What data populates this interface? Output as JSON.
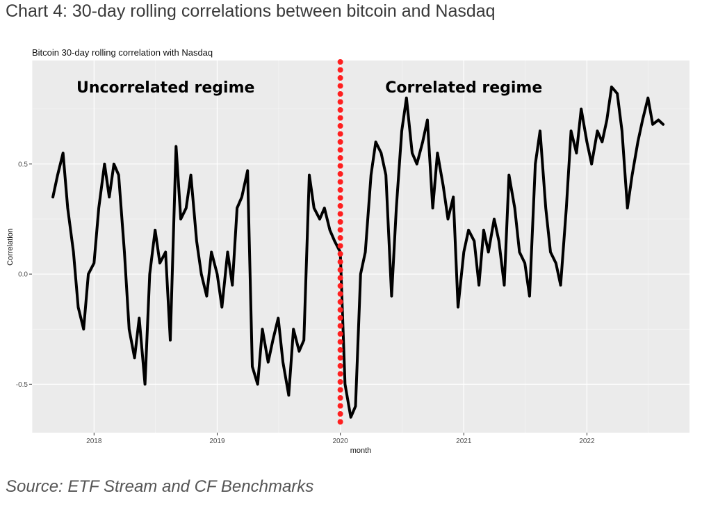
{
  "header": {
    "title": "Chart 4: 30-day rolling correlations between bitcoin and Nasdaq"
  },
  "footer": {
    "source": "Source: ETF Stream and CF Benchmarks"
  },
  "colors": {
    "panel": "#ebebeb",
    "grid_major": "#ffffff",
    "line": "#000000",
    "vline": "#ff1f1f"
  },
  "chart_data": {
    "type": "line",
    "title": "Bitcoin 30-day rolling correlation with Nasdaq",
    "xlabel": "month",
    "ylabel": "Correlation",
    "xlim": [
      "2017-07-01",
      "2022-11-01"
    ],
    "ylim": [
      -0.72,
      0.97
    ],
    "x_ticks": [
      {
        "value": "2018-01-01",
        "label": "2018"
      },
      {
        "value": "2019-01-01",
        "label": "2019"
      },
      {
        "value": "2020-01-01",
        "label": "2020"
      },
      {
        "value": "2021-01-01",
        "label": "2021"
      },
      {
        "value": "2022-01-01",
        "label": "2022"
      }
    ],
    "y_ticks": [
      {
        "value": -0.5,
        "label": "-0.5"
      },
      {
        "value": 0.0,
        "label": "0.0"
      },
      {
        "value": 0.5,
        "label": "0.5"
      }
    ],
    "grid": true,
    "legend": "none",
    "reference_line": {
      "x": "2020-01-01",
      "style": "dotted",
      "color": "#ff1f1f"
    },
    "annotations": [
      {
        "text": "Uncorrelated regime",
        "x": "2018-08-01",
        "y": 0.85
      },
      {
        "text": "Correlated regime",
        "x": "2021-01-01",
        "y": 0.85
      }
    ],
    "series": [
      {
        "x": [
          "2017-09-01",
          "2017-09-15",
          "2017-10-01",
          "2017-10-15",
          "2017-11-01",
          "2017-11-15",
          "2017-12-01",
          "2017-12-15",
          "2018-01-01",
          "2018-01-15",
          "2018-02-01",
          "2018-02-15",
          "2018-03-01",
          "2018-03-15",
          "2018-04-01",
          "2018-04-15",
          "2018-05-01",
          "2018-05-15",
          "2018-06-01",
          "2018-06-15",
          "2018-07-01",
          "2018-07-15",
          "2018-08-01",
          "2018-08-15",
          "2018-09-01",
          "2018-09-15",
          "2018-10-01",
          "2018-10-15",
          "2018-11-01",
          "2018-11-15",
          "2018-12-01",
          "2018-12-15",
          "2019-01-01",
          "2019-01-15",
          "2019-02-01",
          "2019-02-15",
          "2019-03-01",
          "2019-03-15",
          "2019-04-01",
          "2019-04-15",
          "2019-05-01",
          "2019-05-15",
          "2019-06-01",
          "2019-06-15",
          "2019-07-01",
          "2019-07-15",
          "2019-08-01",
          "2019-08-15",
          "2019-09-01",
          "2019-09-15",
          "2019-10-01",
          "2019-10-15",
          "2019-11-01",
          "2019-11-15",
          "2019-12-01",
          "2019-12-15",
          "2020-01-01",
          "2020-01-15",
          "2020-02-01",
          "2020-02-15",
          "2020-03-01",
          "2020-03-15",
          "2020-04-01",
          "2020-04-15",
          "2020-05-01",
          "2020-05-15",
          "2020-06-01",
          "2020-06-15",
          "2020-07-01",
          "2020-07-15",
          "2020-08-01",
          "2020-08-15",
          "2020-09-01",
          "2020-09-15",
          "2020-10-01",
          "2020-10-15",
          "2020-11-01",
          "2020-11-15",
          "2020-12-01",
          "2020-12-15",
          "2021-01-01",
          "2021-01-15",
          "2021-02-01",
          "2021-02-15",
          "2021-03-01",
          "2021-03-15",
          "2021-04-01",
          "2021-04-15",
          "2021-05-01",
          "2021-05-15",
          "2021-06-01",
          "2021-06-15",
          "2021-07-01",
          "2021-07-15",
          "2021-08-01",
          "2021-08-15",
          "2021-09-01",
          "2021-09-15",
          "2021-10-01",
          "2021-10-15",
          "2021-11-01",
          "2021-11-15",
          "2021-12-01",
          "2021-12-15",
          "2022-01-01",
          "2022-01-15",
          "2022-02-01",
          "2022-02-15",
          "2022-03-01",
          "2022-03-15",
          "2022-04-01",
          "2022-04-15",
          "2022-05-01",
          "2022-05-15",
          "2022-06-01",
          "2022-06-15",
          "2022-07-01",
          "2022-07-15",
          "2022-08-01",
          "2022-08-15"
        ],
        "y": [
          0.35,
          0.45,
          0.55,
          0.3,
          0.1,
          -0.15,
          -0.25,
          0.0,
          0.05,
          0.3,
          0.5,
          0.35,
          0.5,
          0.45,
          0.1,
          -0.25,
          -0.38,
          -0.2,
          -0.5,
          0.0,
          0.2,
          0.05,
          0.1,
          -0.3,
          0.58,
          0.25,
          0.3,
          0.45,
          0.15,
          0.0,
          -0.1,
          0.1,
          0.0,
          -0.15,
          0.1,
          -0.05,
          0.3,
          0.35,
          0.47,
          -0.42,
          -0.5,
          -0.25,
          -0.4,
          -0.3,
          -0.2,
          -0.4,
          -0.55,
          -0.25,
          -0.35,
          -0.3,
          0.45,
          0.3,
          0.25,
          0.3,
          0.2,
          0.15,
          0.1,
          -0.5,
          -0.65,
          -0.6,
          0.0,
          0.1,
          0.45,
          0.6,
          0.55,
          0.45,
          -0.1,
          0.3,
          0.65,
          0.8,
          0.55,
          0.5,
          0.6,
          0.7,
          0.3,
          0.55,
          0.4,
          0.25,
          0.35,
          -0.15,
          0.1,
          0.2,
          0.15,
          -0.05,
          0.2,
          0.1,
          0.25,
          0.15,
          -0.05,
          0.45,
          0.3,
          0.1,
          0.05,
          -0.1,
          0.5,
          0.65,
          0.3,
          0.1,
          0.05,
          -0.05,
          0.3,
          0.65,
          0.55,
          0.75,
          0.6,
          0.5,
          0.65,
          0.6,
          0.7,
          0.85,
          0.82,
          0.65,
          0.3,
          0.45,
          0.6,
          0.7,
          0.8,
          0.68,
          0.7,
          0.68
        ]
      }
    ]
  }
}
